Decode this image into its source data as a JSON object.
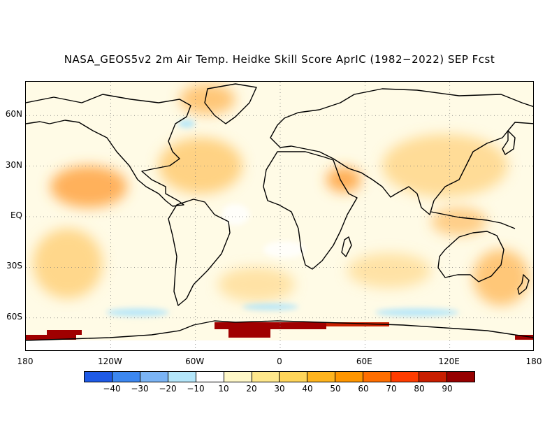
{
  "title": "NASA_GEOS5v2 2m Air Temp. Heidke Skill Score AprIC (1982−2022) SEP Fcst",
  "map": {
    "lat_labels": [
      "60N",
      "30N",
      "EQ",
      "30S",
      "60S"
    ],
    "lat_values": [
      60,
      30,
      0,
      -30,
      -60
    ],
    "lon_labels": [
      "180",
      "120W",
      "60W",
      "0",
      "60E",
      "120E",
      "180"
    ],
    "lon_values": [
      -180,
      -120,
      -60,
      0,
      60,
      120,
      180
    ],
    "lat_range": [
      -80,
      80
    ],
    "lon_range": [
      -180,
      180
    ],
    "grid": "dotted",
    "background_fill": "#fffbe6"
  },
  "colorbar": {
    "labels": [
      "−40",
      "−30",
      "−20",
      "−10",
      "10",
      "20",
      "30",
      "40",
      "50",
      "60",
      "70",
      "80",
      "90"
    ],
    "colors": [
      "#1e5ae6",
      "#3c87f0",
      "#7bb4f5",
      "#b4e6fa",
      "#ffffff",
      "#fff8c8",
      "#ffe88c",
      "#ffd55a",
      "#ffb41e",
      "#ff9600",
      "#ff6e00",
      "#ff3c00",
      "#c81e00",
      "#960000"
    ]
  }
}
